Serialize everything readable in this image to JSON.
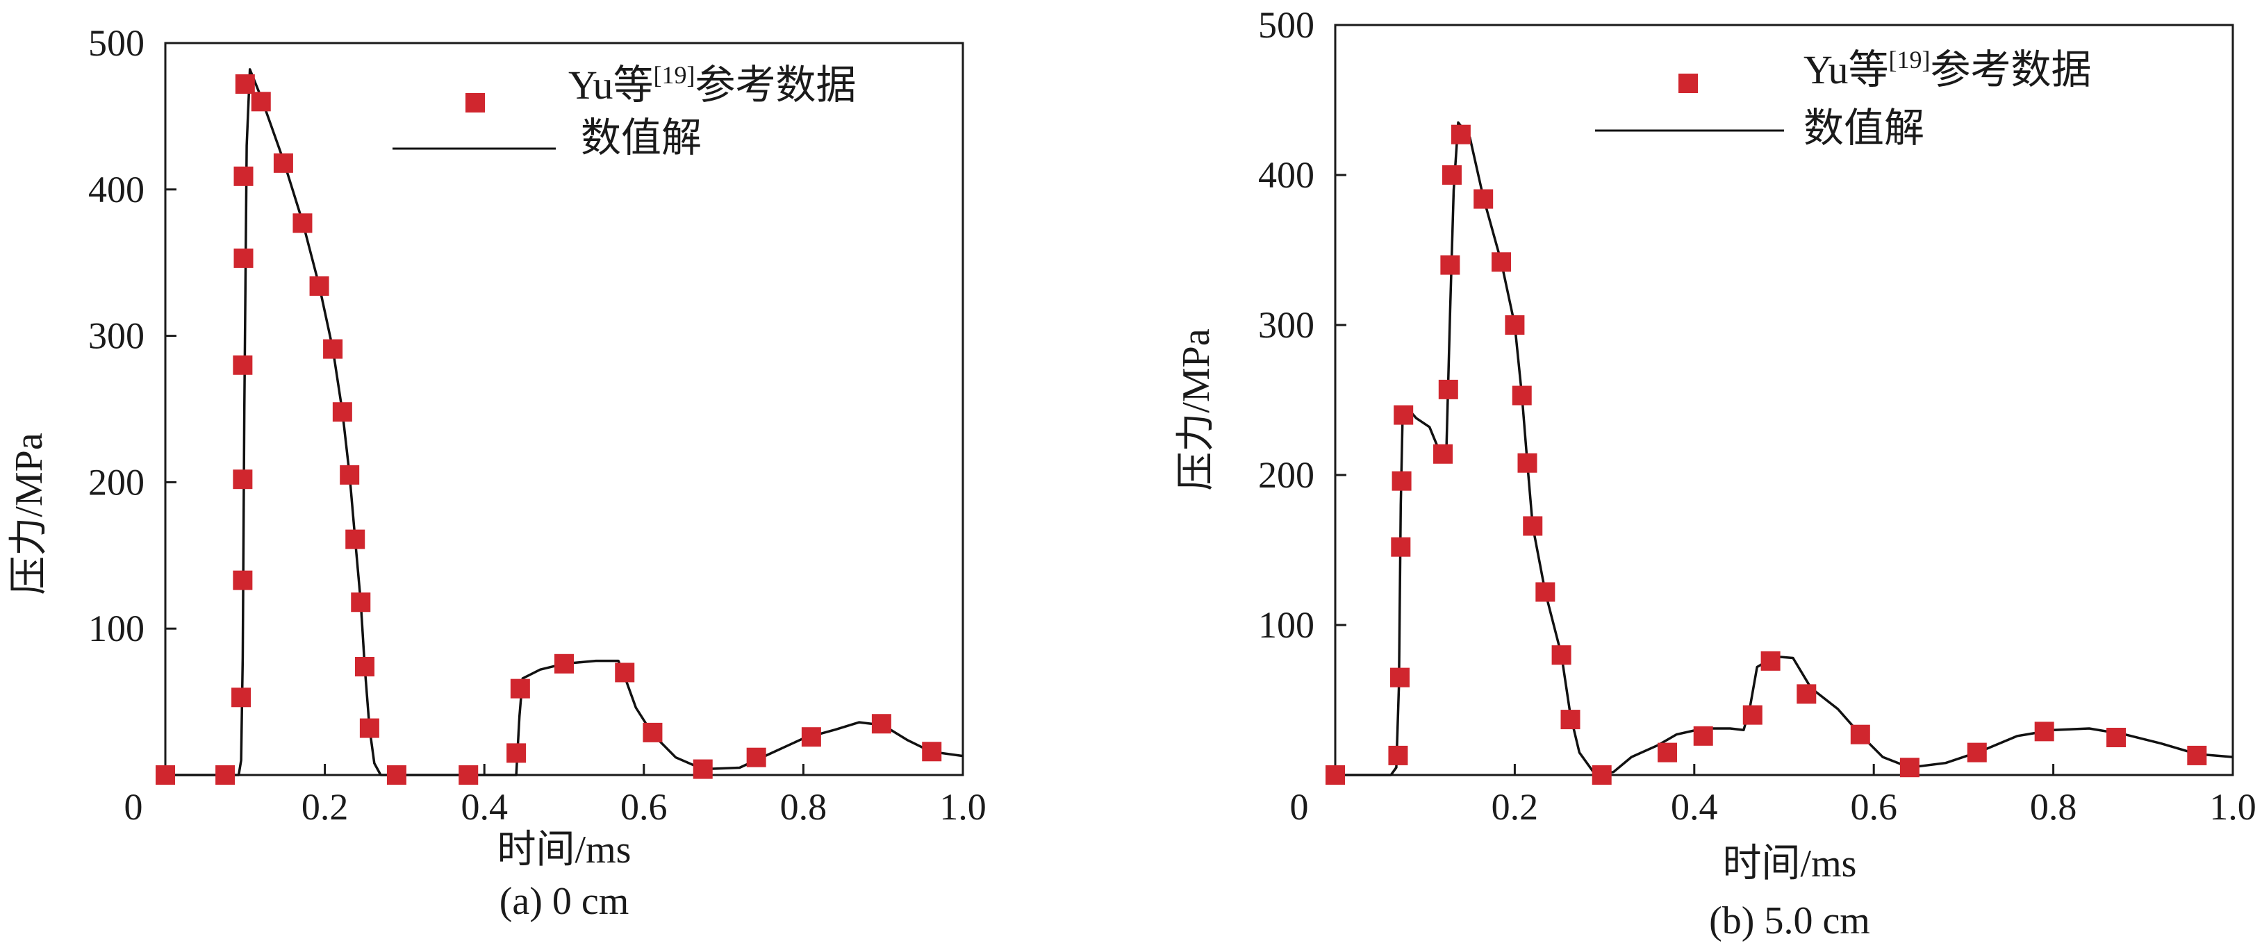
{
  "chart_data": [
    {
      "type": "scatter",
      "caption": "(a) 0 cm",
      "xlabel": "时间/ms",
      "ylabel": "压力/MPa",
      "xlim": [
        0,
        1.0
      ],
      "ylim": [
        0,
        500
      ],
      "x_ticks": [
        "0",
        "0.2",
        "0.4",
        "0.6",
        "0.8",
        "1.0"
      ],
      "y_ticks": [
        "100",
        "200",
        "300",
        "400",
        "500"
      ],
      "legend_placement": "top-right",
      "series": [
        {
          "name_main": "Yu等",
          "name_sup": "[19]",
          "name_tail": "参考数据",
          "kind": "markers",
          "color": "#d0262e",
          "points": [
            [
              0.0,
              0
            ],
            [
              0.075,
              0
            ],
            [
              0.095,
              53
            ],
            [
              0.097,
              133
            ],
            [
              0.097,
              202
            ],
            [
              0.097,
              280
            ],
            [
              0.098,
              353
            ],
            [
              0.098,
              409
            ],
            [
              0.1,
              472
            ],
            [
              0.12,
              460
            ],
            [
              0.148,
              418
            ],
            [
              0.172,
              377
            ],
            [
              0.193,
              334
            ],
            [
              0.21,
              291
            ],
            [
              0.222,
              248
            ],
            [
              0.231,
              205
            ],
            [
              0.238,
              161
            ],
            [
              0.245,
              118
            ],
            [
              0.25,
              74
            ],
            [
              0.256,
              32
            ],
            [
              0.29,
              0
            ],
            [
              0.38,
              0
            ],
            [
              0.44,
              15
            ],
            [
              0.445,
              59
            ],
            [
              0.5,
              76
            ],
            [
              0.576,
              70
            ],
            [
              0.611,
              29
            ],
            [
              0.674,
              4
            ],
            [
              0.741,
              12
            ],
            [
              0.81,
              26
            ],
            [
              0.898,
              35
            ],
            [
              0.961,
              16
            ]
          ]
        },
        {
          "name_main": "数值解",
          "kind": "line",
          "color": "#111111",
          "points": [
            [
              0.0,
              0
            ],
            [
              0.08,
              0
            ],
            [
              0.092,
              0
            ],
            [
              0.095,
              10
            ],
            [
              0.097,
              80
            ],
            [
              0.099,
              250
            ],
            [
              0.102,
              430
            ],
            [
              0.106,
              482
            ],
            [
              0.12,
              463
            ],
            [
              0.148,
              420
            ],
            [
              0.172,
              378
            ],
            [
              0.193,
              334
            ],
            [
              0.21,
              291
            ],
            [
              0.222,
              248
            ],
            [
              0.231,
              205
            ],
            [
              0.238,
              161
            ],
            [
              0.245,
              118
            ],
            [
              0.25,
              74
            ],
            [
              0.256,
              32
            ],
            [
              0.262,
              8
            ],
            [
              0.27,
              0
            ],
            [
              0.44,
              0
            ],
            [
              0.444,
              40
            ],
            [
              0.448,
              66
            ],
            [
              0.47,
              72
            ],
            [
              0.5,
              76
            ],
            [
              0.54,
              78
            ],
            [
              0.568,
              78
            ],
            [
              0.574,
              70
            ],
            [
              0.59,
              46
            ],
            [
              0.611,
              28
            ],
            [
              0.64,
              12
            ],
            [
              0.674,
              4
            ],
            [
              0.72,
              5
            ],
            [
              0.76,
              15
            ],
            [
              0.8,
              25
            ],
            [
              0.84,
              31
            ],
            [
              0.87,
              36
            ],
            [
              0.9,
              34
            ],
            [
              0.93,
              24
            ],
            [
              0.96,
              16
            ],
            [
              1.0,
              13
            ]
          ]
        }
      ]
    },
    {
      "type": "scatter",
      "caption": "(b) 5.0 cm",
      "xlabel": "时间/ms",
      "ylabel": "压力/MPa",
      "xlim": [
        0,
        1.0
      ],
      "ylim": [
        0,
        500
      ],
      "x_ticks": [
        "0",
        "0.2",
        "0.4",
        "0.6",
        "0.8",
        "1.0"
      ],
      "y_ticks": [
        "100",
        "200",
        "300",
        "400",
        "500"
      ],
      "legend_placement": "top-right",
      "series": [
        {
          "name_main": "Yu等",
          "name_sup": "[19]",
          "name_tail": "参考数据",
          "kind": "markers",
          "color": "#d0262e",
          "points": [
            [
              0.0,
              0
            ],
            [
              0.07,
              13
            ],
            [
              0.072,
              65
            ],
            [
              0.073,
              152
            ],
            [
              0.074,
              196
            ],
            [
              0.076,
              240
            ],
            [
              0.12,
              214
            ],
            [
              0.126,
              257
            ],
            [
              0.128,
              340
            ],
            [
              0.13,
              400
            ],
            [
              0.14,
              427
            ],
            [
              0.165,
              384
            ],
            [
              0.185,
              342
            ],
            [
              0.2,
              300
            ],
            [
              0.208,
              253
            ],
            [
              0.214,
              208
            ],
            [
              0.22,
              166
            ],
            [
              0.234,
              122
            ],
            [
              0.252,
              80
            ],
            [
              0.262,
              37
            ],
            [
              0.297,
              0
            ],
            [
              0.37,
              15
            ],
            [
              0.41,
              26
            ],
            [
              0.465,
              40
            ],
            [
              0.485,
              76
            ],
            [
              0.525,
              54
            ],
            [
              0.585,
              27
            ],
            [
              0.64,
              5
            ],
            [
              0.715,
              15
            ],
            [
              0.79,
              29
            ],
            [
              0.87,
              25
            ],
            [
              0.96,
              13
            ]
          ]
        },
        {
          "name_main": "数值解",
          "kind": "line",
          "color": "#111111",
          "points": [
            [
              0.0,
              0
            ],
            [
              0.062,
              0
            ],
            [
              0.068,
              5
            ],
            [
              0.071,
              60
            ],
            [
              0.073,
              180
            ],
            [
              0.075,
              238
            ],
            [
              0.08,
              245
            ],
            [
              0.09,
              238
            ],
            [
              0.105,
              232
            ],
            [
              0.118,
              213
            ],
            [
              0.124,
              220
            ],
            [
              0.128,
              310
            ],
            [
              0.132,
              390
            ],
            [
              0.137,
              435
            ],
            [
              0.15,
              425
            ],
            [
              0.165,
              385
            ],
            [
              0.185,
              342
            ],
            [
              0.2,
              300
            ],
            [
              0.208,
              253
            ],
            [
              0.214,
              208
            ],
            [
              0.22,
              166
            ],
            [
              0.234,
              122
            ],
            [
              0.252,
              80
            ],
            [
              0.262,
              40
            ],
            [
              0.272,
              15
            ],
            [
              0.29,
              0
            ],
            [
              0.31,
              2
            ],
            [
              0.33,
              12
            ],
            [
              0.36,
              20
            ],
            [
              0.38,
              27
            ],
            [
              0.41,
              31
            ],
            [
              0.44,
              31
            ],
            [
              0.455,
              30
            ],
            [
              0.462,
              45
            ],
            [
              0.47,
              72
            ],
            [
              0.49,
              79
            ],
            [
              0.51,
              78
            ],
            [
              0.53,
              58
            ],
            [
              0.56,
              44
            ],
            [
              0.585,
              27
            ],
            [
              0.61,
              12
            ],
            [
              0.64,
              5
            ],
            [
              0.68,
              8
            ],
            [
              0.72,
              16
            ],
            [
              0.76,
              26
            ],
            [
              0.8,
              30
            ],
            [
              0.84,
              31
            ],
            [
              0.88,
              27
            ],
            [
              0.92,
              21
            ],
            [
              0.96,
              14
            ],
            [
              1.0,
              12
            ]
          ]
        }
      ]
    }
  ]
}
